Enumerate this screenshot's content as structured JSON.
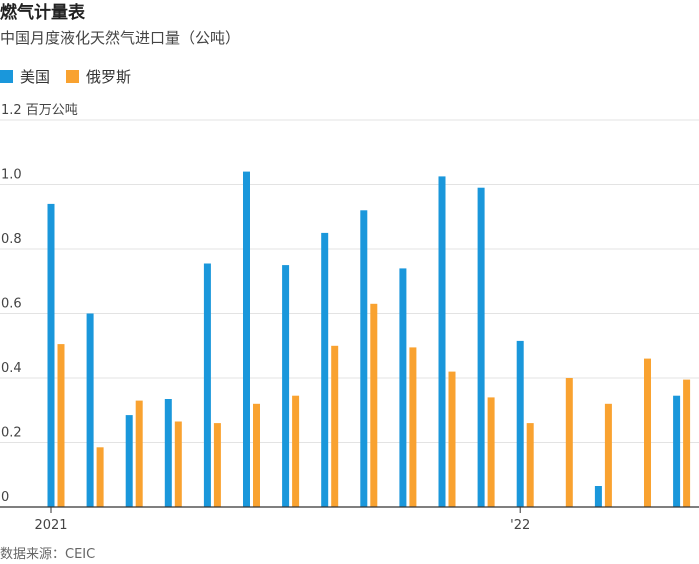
{
  "header": {
    "title": "燃气计量表",
    "subtitle": "中国月度液化天然气进口量（公吨）"
  },
  "legend": {
    "items": [
      {
        "label": "美国",
        "color": "#1a97db"
      },
      {
        "label": "俄罗斯",
        "color": "#f9a230"
      }
    ]
  },
  "footer": {
    "source": "数据来源：CEIC"
  },
  "chart_data": {
    "type": "bar",
    "title": "燃气计量表",
    "subtitle": "中国月度液化天然气进口量（公吨）",
    "ylabel": "百万公吨",
    "ylim": [
      0,
      1.2
    ],
    "yticks": [
      0,
      0.2,
      0.4,
      0.6,
      0.8,
      1.0,
      1.2
    ],
    "ytick_labels": [
      "0",
      "0.2",
      "0.4",
      "0.6",
      "0.8",
      "1.0",
      "1.2 百万公吨"
    ],
    "grid": true,
    "legend_position": "top-left",
    "categories": [
      "2021-01",
      "2021-02",
      "2021-03",
      "2021-04",
      "2021-05",
      "2021-06",
      "2021-07",
      "2021-08",
      "2021-09",
      "2021-10",
      "2021-11",
      "2021-12",
      "2022-01",
      "2022-02",
      "2022-03",
      "2022-04",
      "2022-05"
    ],
    "xtick_labels": [
      {
        "category_index": 0,
        "label": "2021"
      },
      {
        "category_index": 12,
        "label": "'22"
      }
    ],
    "series": [
      {
        "name": "美国",
        "color": "#1a97db",
        "values": [
          0.94,
          0.6,
          0.285,
          0.335,
          0.755,
          1.04,
          0.75,
          0.85,
          0.92,
          0.74,
          1.025,
          0.99,
          0.515,
          0.0,
          0.065,
          0.0,
          0.345
        ]
      },
      {
        "name": "俄罗斯",
        "color": "#f9a230",
        "values": [
          0.505,
          0.185,
          0.33,
          0.265,
          0.26,
          0.32,
          0.345,
          0.5,
          0.63,
          0.495,
          0.42,
          0.34,
          0.26,
          0.4,
          0.32,
          0.46,
          0.395
        ]
      }
    ]
  }
}
